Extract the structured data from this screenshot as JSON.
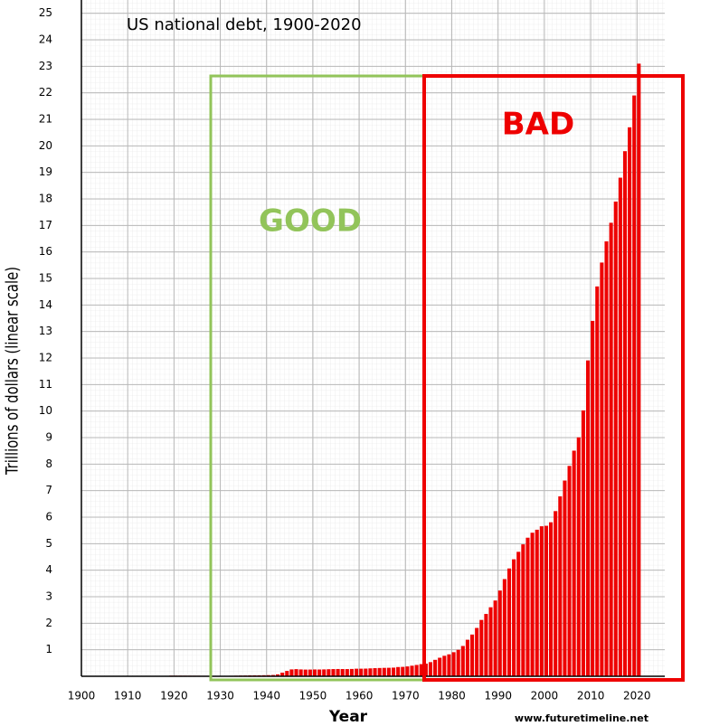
{
  "chart_data": {
    "type": "bar",
    "title": "US national debt, 1900-2020",
    "x_label": "Year",
    "y_label": "Trillions of dollars (linear scale)",
    "annotations": [
      "GOOD",
      "BAD"
    ],
    "source": "www.futuretimeline.net",
    "color": "#ee0000",
    "grid": true,
    "x": [
      1900,
      1901,
      1902,
      1903,
      1904,
      1905,
      1906,
      1907,
      1908,
      1909,
      1910,
      1911,
      1912,
      1913,
      1914,
      1915,
      1916,
      1917,
      1918,
      1919,
      1920,
      1921,
      1922,
      1923,
      1924,
      1925,
      1926,
      1927,
      1928,
      1929,
      1930,
      1931,
      1932,
      1933,
      1934,
      1935,
      1936,
      1937,
      1938,
      1939,
      1940,
      1941,
      1942,
      1943,
      1944,
      1945,
      1946,
      1947,
      1948,
      1949,
      1950,
      1951,
      1952,
      1953,
      1954,
      1955,
      1956,
      1957,
      1958,
      1959,
      1960,
      1961,
      1962,
      1963,
      1964,
      1965,
      1966,
      1967,
      1968,
      1969,
      1970,
      1971,
      1972,
      1973,
      1974,
      1975,
      1976,
      1977,
      1978,
      1979,
      1980,
      1981,
      1982,
      1983,
      1984,
      1985,
      1986,
      1987,
      1988,
      1989,
      1990,
      1991,
      1992,
      1993,
      1994,
      1995,
      1996,
      1997,
      1998,
      1999,
      2000,
      2001,
      2002,
      2003,
      2004,
      2005,
      2006,
      2007,
      2008,
      2009,
      2010,
      2011,
      2012,
      2013,
      2014,
      2015,
      2016,
      2017,
      2018,
      2019,
      2020
    ],
    "values": [
      0.001,
      0.001,
      0.001,
      0.001,
      0.001,
      0.001,
      0.001,
      0.001,
      0.001,
      0.001,
      0.001,
      0.001,
      0.001,
      0.001,
      0.001,
      0.001,
      0.001,
      0.003,
      0.012,
      0.025,
      0.024,
      0.024,
      0.023,
      0.022,
      0.021,
      0.02,
      0.019,
      0.018,
      0.018,
      0.017,
      0.016,
      0.017,
      0.019,
      0.023,
      0.027,
      0.029,
      0.034,
      0.036,
      0.037,
      0.04,
      0.043,
      0.049,
      0.072,
      0.137,
      0.201,
      0.259,
      0.269,
      0.258,
      0.252,
      0.253,
      0.257,
      0.255,
      0.259,
      0.266,
      0.271,
      0.274,
      0.273,
      0.271,
      0.276,
      0.285,
      0.286,
      0.289,
      0.298,
      0.306,
      0.312,
      0.317,
      0.32,
      0.326,
      0.348,
      0.354,
      0.371,
      0.398,
      0.427,
      0.458,
      0.475,
      0.533,
      0.62,
      0.699,
      0.772,
      0.827,
      0.908,
      0.998,
      1.142,
      1.377,
      1.572,
      1.823,
      2.125,
      2.35,
      2.602,
      2.857,
      3.233,
      3.665,
      4.065,
      4.411,
      4.693,
      4.974,
      5.225,
      5.413,
      5.526,
      5.656,
      5.674,
      5.807,
      6.228,
      6.783,
      7.379,
      7.933,
      8.507,
      9.008,
      10.025,
      11.91,
      13.4,
      14.7,
      15.6,
      16.4,
      17.1,
      17.9,
      18.8,
      19.8,
      20.7,
      21.9,
      23.1
    ],
    "xlim": [
      1900,
      2026
    ],
    "xticks": [
      1900,
      1910,
      1920,
      1930,
      1940,
      1950,
      1960,
      1970,
      1980,
      1990,
      2000,
      2010,
      2020
    ],
    "ylim": [
      0,
      25.5
    ],
    "yticks": [
      1,
      2,
      3,
      4,
      5,
      6,
      7,
      8,
      9,
      10,
      11,
      12,
      13,
      14,
      15,
      16,
      17,
      18,
      19,
      20,
      21,
      22,
      23,
      24,
      25
    ]
  }
}
